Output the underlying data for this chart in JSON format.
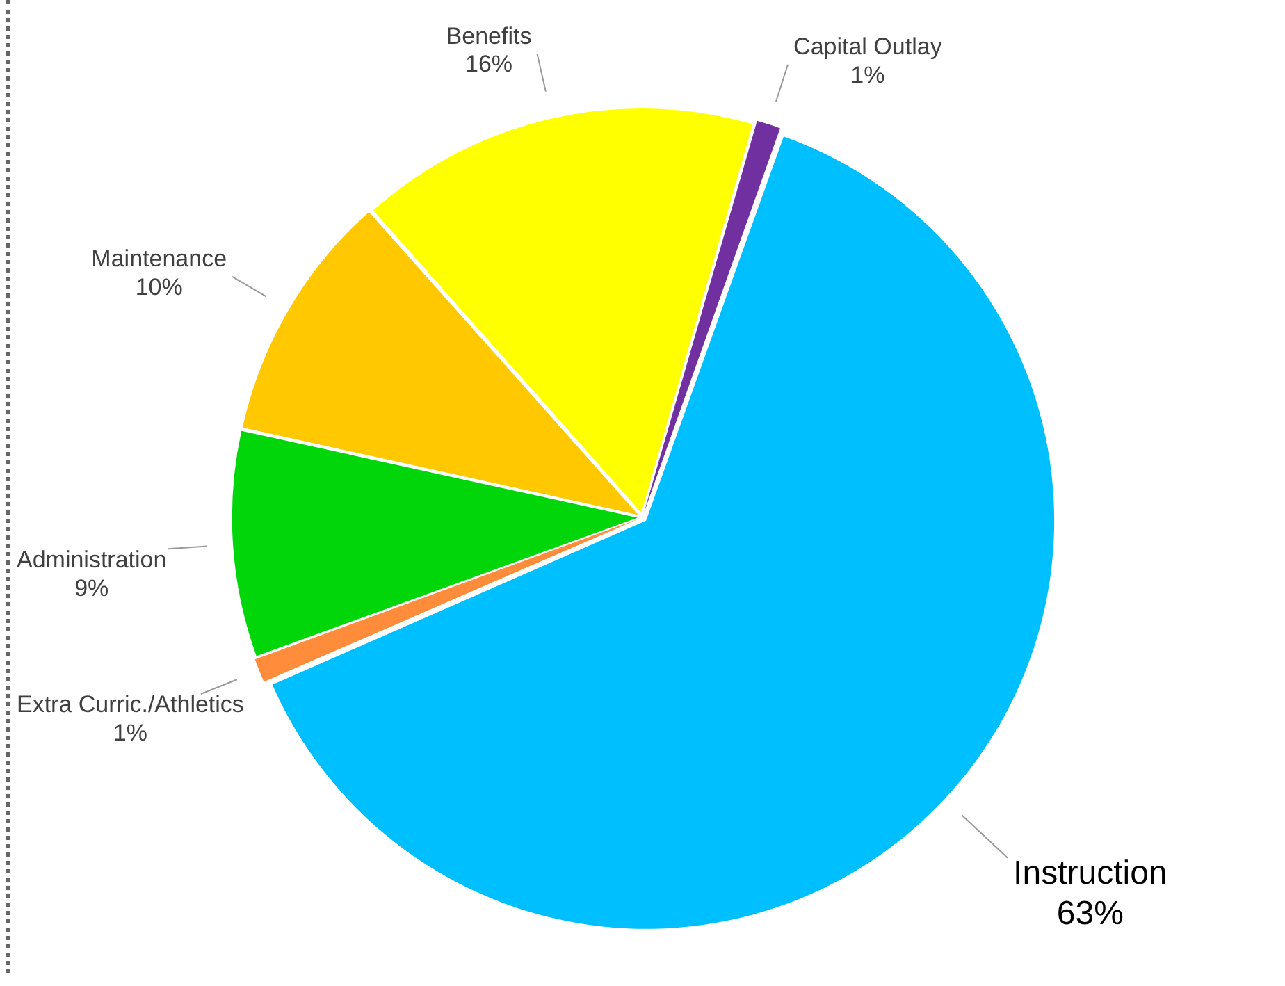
{
  "chart_data": {
    "type": "pie",
    "categories": [
      "Capital Outlay",
      "Instruction",
      "Extra Curric./Athletics",
      "Administration",
      "Maintenance",
      "Benefits"
    ],
    "values": [
      1,
      63,
      1,
      9,
      10,
      16
    ],
    "colors": [
      "#7030a0",
      "#00bfff",
      "#ff8c3a",
      "#00d60a",
      "#ffc800",
      "#ffff00"
    ],
    "value_labels": [
      "1%",
      "63%",
      "1%",
      "9%",
      "10%",
      "16%"
    ],
    "legend": false
  }
}
